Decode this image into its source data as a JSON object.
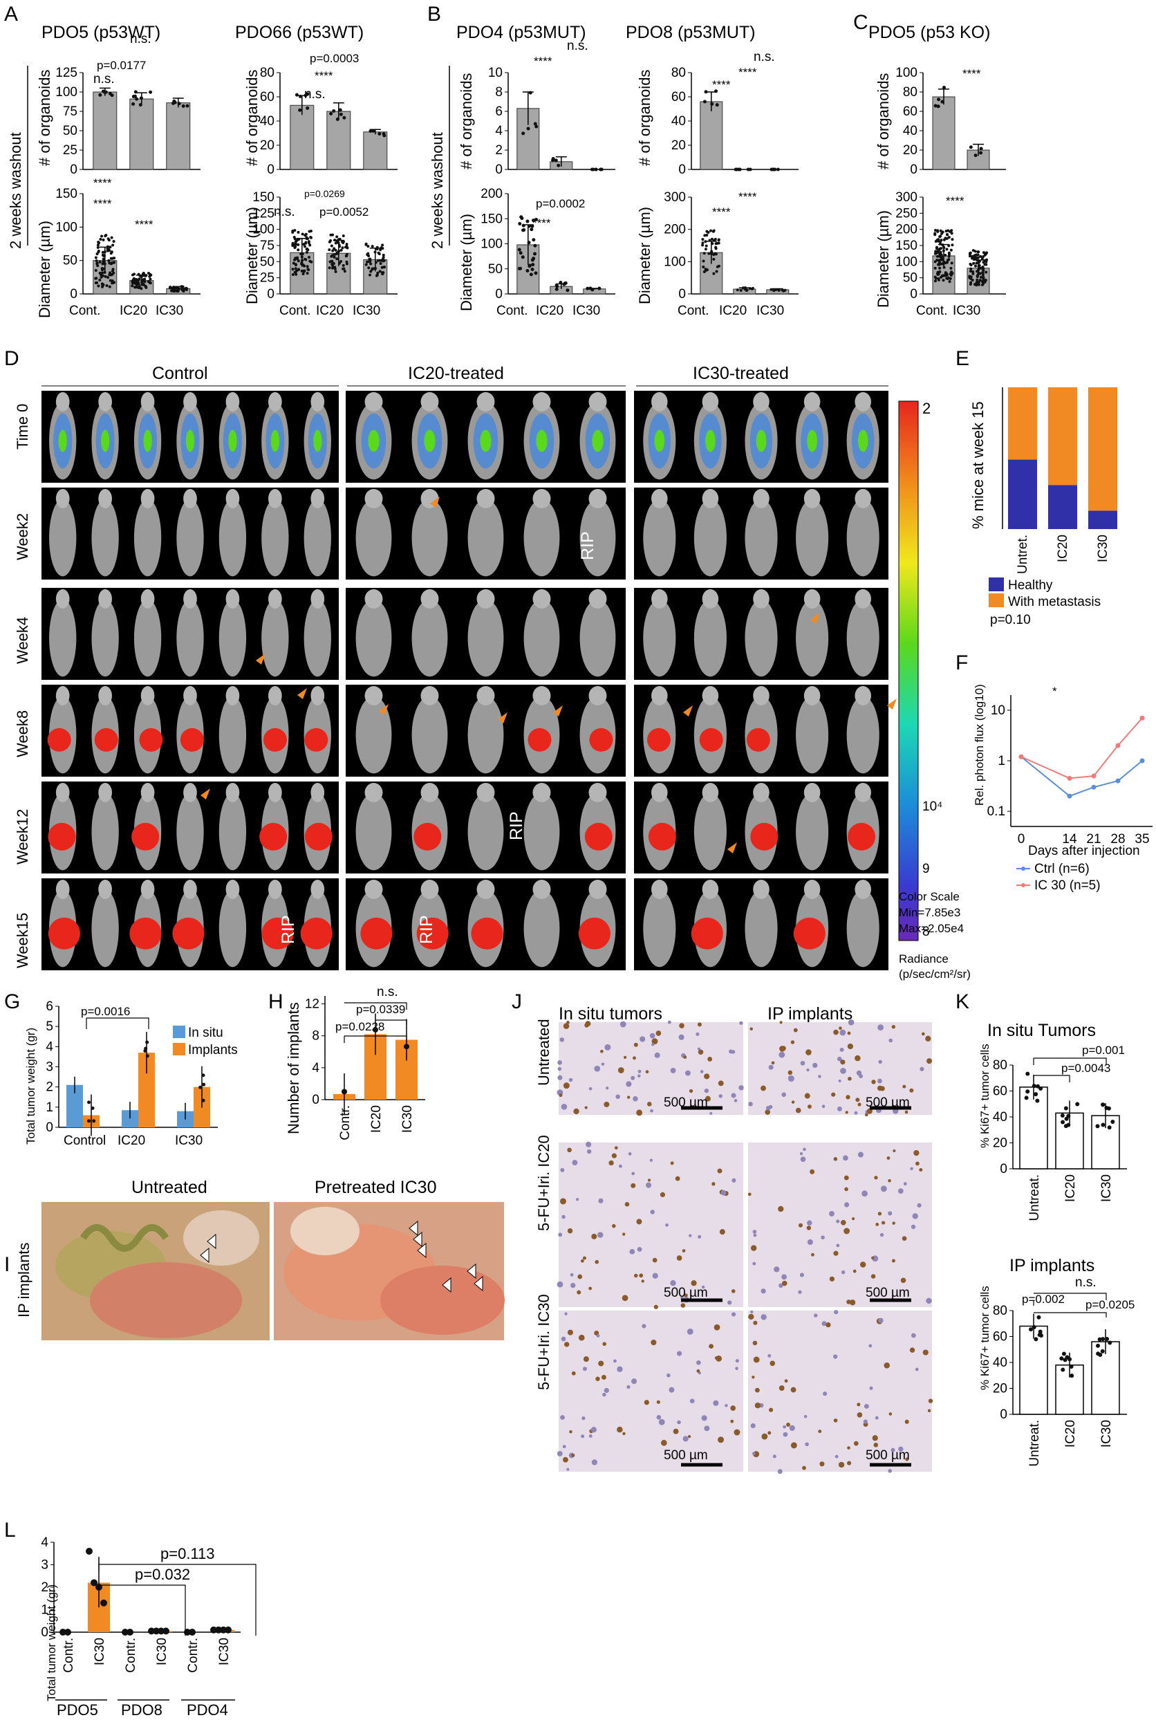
{
  "panels": {
    "A": "A",
    "B": "B",
    "C": "C",
    "D": "D",
    "E": "E",
    "F": "F",
    "G": "G",
    "H": "H",
    "I": "I",
    "J": "J",
    "K": "K",
    "L": "L"
  },
  "shared_labels": {
    "washout": "2 weeks washout",
    "organoids": "# of organoids",
    "diameter": "Diameter (µm)",
    "ns": "n.s.",
    "stars4": "****",
    "star1": "*"
  },
  "panel_A": {
    "left_title": "PDO5 (p53WT)",
    "right_title": "PDO66 (p53WT)",
    "categories": [
      "Cont.",
      "IC20",
      "IC30"
    ],
    "left_p": "p=0.0177",
    "right_p1": "p=0.0003",
    "right_p2": "p=0.0269",
    "right_p3": "p=0.0052"
  },
  "panel_B": {
    "left_title": "PDO4 (p53MUT)",
    "right_title": "PDO8 (p53MUT)",
    "categories": [
      "Cont.",
      "IC20",
      "IC30"
    ],
    "left_p": "p=0.0002"
  },
  "panel_C": {
    "title": "PDO5 (p53 KO)",
    "categories": [
      "Cont.",
      "IC30"
    ]
  },
  "panel_D": {
    "groups": [
      "Control",
      "IC20-treated",
      "IC30-treated"
    ],
    "rows": [
      "Time 0",
      "Week2",
      "Week4",
      "Week8",
      "Week12",
      "Week15"
    ],
    "rip": "RIP",
    "scale_top": "2",
    "scale_mid": "10⁴",
    "scale_9": "9",
    "scale_8": "8",
    "color_scale_title": "Color Scale",
    "color_scale_min": "Min=7.85e3",
    "color_scale_max": "Max=2.05e4",
    "radiance_label": "Radiance",
    "radiance_unit": "(p/sec/cm²/sr)"
  },
  "panel_E": {
    "ylabel": "% mice at week 15",
    "categories": [
      "Untret.",
      "IC20",
      "IC30"
    ],
    "healthy": [
      49,
      31,
      13
    ],
    "legend_healthy": "Healthy",
    "legend_metastasis": "With metastasis",
    "p": "p=0.10",
    "color_healthy": "#3030a8",
    "color_metastasis": "#f28a24",
    "ticks": [
      "0",
      "50",
      "100"
    ]
  },
  "panel_F": {
    "ylabel": "Rel. photon flux (log10)",
    "xlabel": "Days after injection",
    "x_ticks": [
      "0",
      "14",
      "21",
      "28",
      "35"
    ],
    "y_ticks": [
      "0.1",
      "1",
      "10"
    ],
    "series": [
      {
        "name": "Ctrl (n=6)",
        "color": "#5a8fd6",
        "x": [
          0,
          14,
          21,
          28,
          35
        ],
        "y": [
          1.2,
          0.2,
          0.3,
          0.4,
          1.0
        ]
      },
      {
        "name": "IC 30 (n=5)",
        "color": "#ef7b7b",
        "x": [
          0,
          14,
          21,
          28,
          35
        ],
        "y": [
          1.2,
          0.45,
          0.5,
          2.0,
          7.0
        ]
      }
    ]
  },
  "panel_G": {
    "ylabel": "Total tumor weight (gr)",
    "categories": [
      "Control",
      "IC20",
      "IC30"
    ],
    "legend_insitu": "In situ",
    "legend_implants": "Implants",
    "p": "p=0.0016",
    "y_ticks": [
      "0",
      "1",
      "2",
      "3",
      "4",
      "5",
      "6"
    ],
    "insitu": [
      2.1,
      0.85,
      0.8
    ],
    "implants": [
      0.6,
      3.7,
      2.0
    ],
    "color_insitu": "#5a9bd5",
    "color_implants": "#f28a24"
  },
  "panel_H": {
    "ylabel": "Number of implants",
    "categories": [
      "Contr.",
      "IC20",
      "IC30"
    ],
    "p1": "p=0.0228",
    "p2": "p=0.0339",
    "y_ticks": [
      "0",
      "4",
      "8",
      "12"
    ],
    "values": [
      0.7,
      8.2,
      7.5
    ]
  },
  "panel_I": {
    "side_label": "IP implants",
    "left": "Untreated",
    "right": "Pretreated IC30"
  },
  "panel_J": {
    "col1": "In situ tumors",
    "col2": "IP implants",
    "rows": [
      "Untreated",
      "5-FU+Iri. IC20",
      "5-FU+Iri. IC30"
    ],
    "scale": "500 µm"
  },
  "panel_K": {
    "top_title": "In situ Tumors",
    "bottom_title": "IP implants",
    "ylabel": "% Ki67+ tumor cells",
    "categories": [
      "Untreat.",
      "IC20",
      "IC30"
    ],
    "top_p1": "p=0.001",
    "top_p2": "p=0.0043",
    "bottom_p1": "p=0.002",
    "bottom_p2": "p=0.0205",
    "top_values": [
      63,
      43,
      41
    ],
    "bottom_values": [
      68,
      38,
      56
    ],
    "y_ticks": [
      "0",
      "20",
      "40",
      "60",
      "80"
    ]
  },
  "panel_L": {
    "ylabel": "Total tumor weight (gr)",
    "categories": [
      "Contr.",
      "IC30",
      "Contr.",
      "IC30",
      "Contr.",
      "IC30"
    ],
    "groups": [
      "PDO5",
      "PDO8",
      "PDO4"
    ],
    "p1": "p=0.032",
    "p2": "p=0.113",
    "y_ticks": [
      "0",
      "1",
      "2",
      "3",
      "4"
    ],
    "values": [
      0.0,
      2.2,
      0.0,
      0.05,
      0.0,
      0.1
    ]
  }
}
